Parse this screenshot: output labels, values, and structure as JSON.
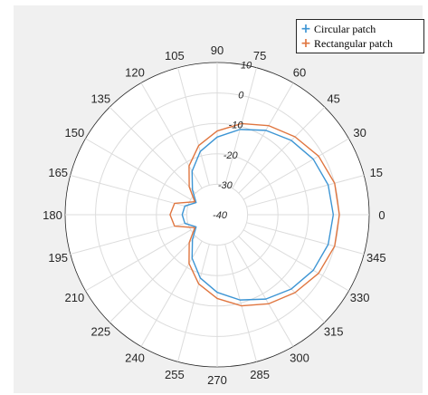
{
  "chart_data": {
    "type": "polar-line",
    "theta_zero": "right",
    "theta_direction": "counterclockwise",
    "theta_ticks": [
      "0",
      "15",
      "30",
      "45",
      "60",
      "75",
      "90",
      "105",
      "120",
      "135",
      "150",
      "165",
      "180",
      "195",
      "210",
      "225",
      "240",
      "255",
      "270",
      "285",
      "300",
      "315",
      "330",
      "345"
    ],
    "r_ticks": [
      "-40",
      "-30",
      "-20",
      "-10",
      "0",
      "10"
    ],
    "rlim": [
      -40,
      10
    ],
    "grid": true,
    "legend_placement": "top-right",
    "theta_deg": [
      0,
      15,
      30,
      45,
      60,
      75,
      90,
      105,
      120,
      135,
      150,
      165,
      180,
      195,
      210,
      225,
      240,
      255,
      270,
      285,
      300,
      315,
      330,
      345,
      360
    ],
    "series": [
      {
        "name": "Circular patch",
        "color": "#3d95d4",
        "marker": "+",
        "r": [
          -1.8,
          -2.2,
          -3.5,
          -5.5,
          -8.0,
          -11.0,
          -14.5,
          -18.5,
          -23.5,
          -28.5,
          -32.0,
          -29.0,
          -28.5,
          -29.0,
          -32.0,
          -28.5,
          -23.5,
          -18.5,
          -14.5,
          -11.0,
          -8.0,
          -5.5,
          -3.5,
          -2.2,
          -1.8
        ]
      },
      {
        "name": "Rectangular patch",
        "color": "#e07640",
        "marker": "+",
        "r": [
          0.2,
          0.0,
          -1.5,
          -3.8,
          -6.2,
          -9.0,
          -12.5,
          -16.5,
          -21.5,
          -27.0,
          -31.5,
          -25.5,
          -24.5,
          -25.5,
          -31.5,
          -27.0,
          -21.5,
          -16.5,
          -12.5,
          -9.0,
          -6.2,
          -3.8,
          -1.5,
          0.0,
          0.2
        ]
      }
    ]
  }
}
